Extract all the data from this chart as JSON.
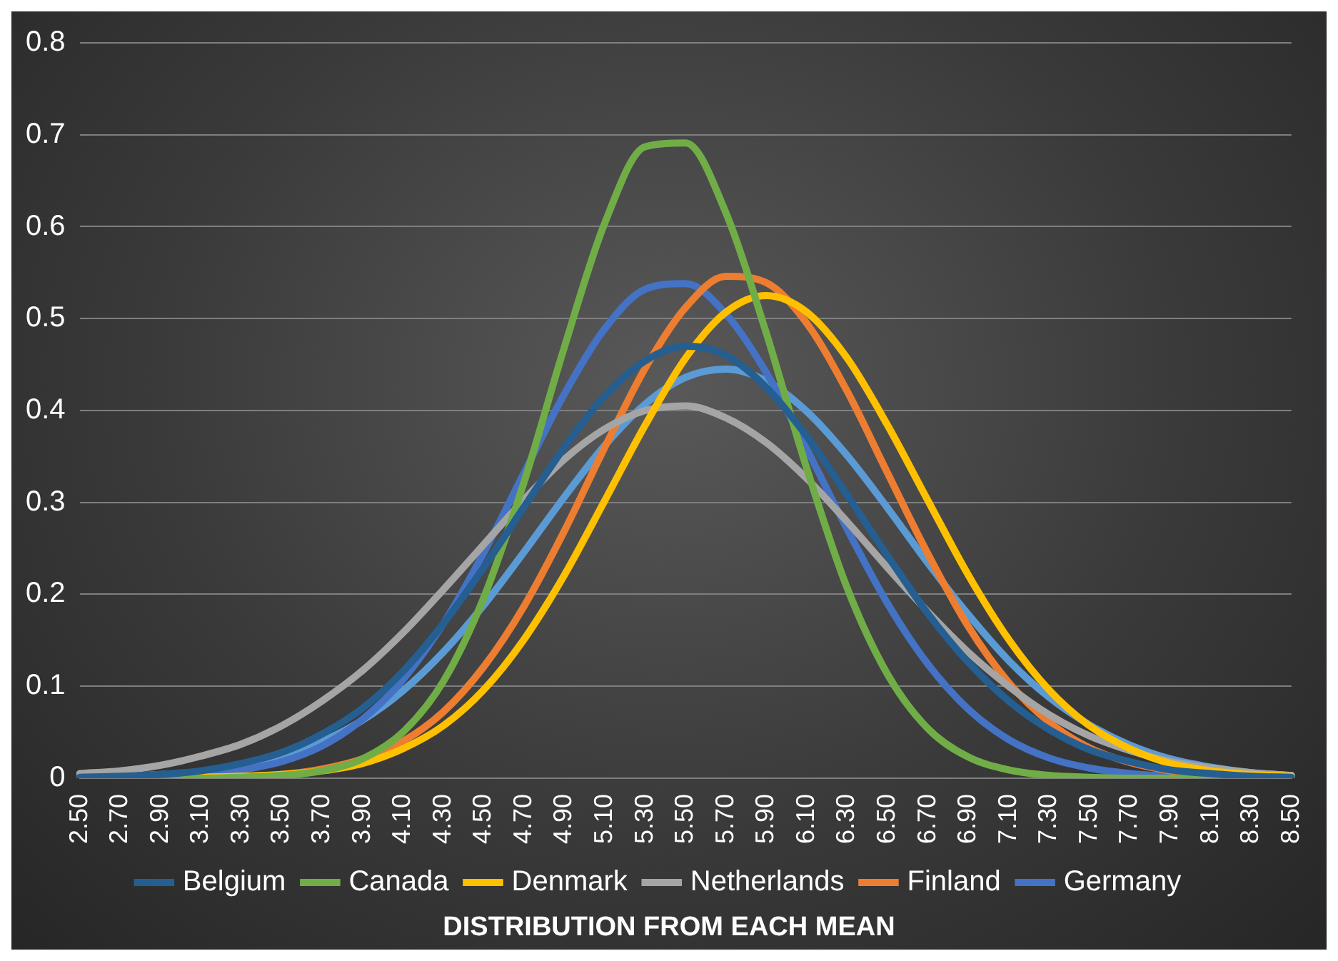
{
  "chart_data": {
    "type": "line",
    "annotations": [
      "DISTRIBUTION FROM EACH MEAN"
    ],
    "categories": [
      "2.50",
      "2.70",
      "2.90",
      "3.10",
      "3.30",
      "3.50",
      "3.70",
      "3.90",
      "4.10",
      "4.30",
      "4.50",
      "4.70",
      "4.90",
      "5.10",
      "5.30",
      "5.50",
      "5.70",
      "5.90",
      "6.10",
      "6.30",
      "6.50",
      "6.70",
      "6.90",
      "7.10",
      "7.30",
      "7.50",
      "7.70",
      "7.90",
      "8.10",
      "8.30",
      "8.50"
    ],
    "series": [
      {
        "name": "Belgium",
        "color": "#255e91",
        "values": [
          0.001,
          0.002,
          0.004,
          0.008,
          0.016,
          0.028,
          0.048,
          0.076,
          0.116,
          0.168,
          0.229,
          0.295,
          0.36,
          0.416,
          0.454,
          0.47,
          0.46,
          0.425,
          0.372,
          0.308,
          0.242,
          0.179,
          0.126,
          0.084,
          0.053,
          0.031,
          0.018,
          0.009,
          0.005,
          0.002,
          0.001
        ]
      },
      {
        "name": "Canada",
        "color": "#70ad47",
        "values": [
          0,
          0,
          0,
          0,
          0.001,
          0.003,
          0.008,
          0.021,
          0.05,
          0.105,
          0.196,
          0.322,
          0.469,
          0.604,
          0.687,
          0.691,
          0.615,
          0.484,
          0.337,
          0.207,
          0.113,
          0.054,
          0.023,
          0.009,
          0.003,
          0.001,
          0,
          0,
          0,
          0,
          0
        ]
      },
      {
        "name": "Denmark",
        "color": "#ffc000",
        "values": [
          null,
          null,
          0,
          0.001,
          0.002,
          0.004,
          0.008,
          0.016,
          0.032,
          0.057,
          0.096,
          0.151,
          0.221,
          0.302,
          0.384,
          0.457,
          0.507,
          0.525,
          0.507,
          0.457,
          0.384,
          0.302,
          0.221,
          0.151,
          0.096,
          0.057,
          0.032,
          0.016,
          0.008,
          0.004,
          0.002
        ]
      },
      {
        "name": "Netherlands",
        "color": "#a5a5a5",
        "values": [
          0.005,
          0.008,
          0.014,
          0.024,
          0.037,
          0.057,
          0.084,
          0.117,
          0.158,
          0.205,
          0.254,
          0.303,
          0.347,
          0.38,
          0.4,
          0.405,
          0.392,
          0.365,
          0.326,
          0.279,
          0.229,
          0.181,
          0.137,
          0.1,
          0.069,
          0.046,
          0.03,
          0.018,
          0.011,
          0.006,
          0.003
        ]
      },
      {
        "name": "Finland",
        "color": "#ed7d31",
        "values": [
          null,
          null,
          0,
          0.001,
          0.002,
          0.004,
          0.01,
          0.021,
          0.04,
          0.072,
          0.121,
          0.187,
          0.269,
          0.36,
          0.446,
          0.512,
          0.546,
          0.539,
          0.495,
          0.421,
          0.332,
          0.244,
          0.165,
          0.104,
          0.061,
          0.033,
          0.017,
          0.008,
          0.003,
          0.001,
          0.001
        ]
      },
      {
        "name": "Germany",
        "color": "#4472c4",
        "values": [
          0,
          0.001,
          0.002,
          0.004,
          0.009,
          0.018,
          0.035,
          0.064,
          0.107,
          0.168,
          0.245,
          0.332,
          0.418,
          0.489,
          0.532,
          0.538,
          0.505,
          0.441,
          0.358,
          0.271,
          0.19,
          0.124,
          0.075,
          0.042,
          0.022,
          0.011,
          0.005,
          0.002,
          0.001,
          0,
          0
        ]
      },
      {
        "color": "#5b9bd5",
        "values": [
          0.001,
          0.002,
          0.004,
          0.007,
          0.013,
          0.024,
          0.04,
          0.063,
          0.095,
          0.137,
          0.188,
          0.246,
          0.306,
          0.362,
          0.407,
          0.436,
          0.445,
          0.432,
          0.399,
          0.351,
          0.294,
          0.234,
          0.178,
          0.128,
          0.088,
          0.058,
          0.036,
          0.021,
          0.012,
          0.006,
          0.003
        ]
      }
    ],
    "ylim": [
      0,
      0.8
    ],
    "yticks": [
      0,
      0.1,
      0.2,
      0.3,
      0.4,
      0.5,
      0.6,
      0.7,
      0.8
    ],
    "grid": "y",
    "legend": "bottom",
    "marker": "none",
    "line_style": "solid"
  }
}
